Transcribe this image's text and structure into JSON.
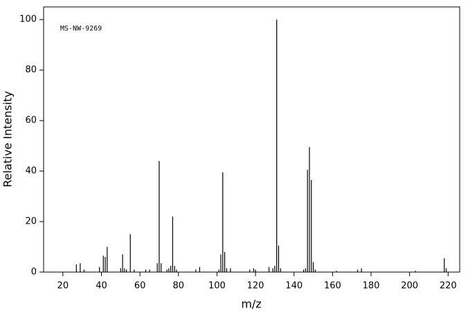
{
  "chart_data": {
    "type": "bar",
    "annotation": "MS-NW-9269",
    "x_label": "m/z",
    "y_label": "Relative Intensity",
    "x": [
      27,
      29,
      31,
      39,
      41,
      42,
      43,
      50,
      51,
      52,
      53,
      55,
      57,
      63,
      65,
      69,
      70,
      71,
      74,
      75,
      76,
      77,
      78,
      79,
      89,
      91,
      101,
      102,
      103,
      104,
      105,
      107,
      117,
      119,
      120,
      127,
      129,
      130,
      131,
      132,
      133,
      145,
      146,
      147,
      148,
      149,
      150,
      151,
      162,
      173,
      175,
      203,
      218,
      219
    ],
    "values": [
      3,
      3.5,
      1,
      2,
      6.5,
      6,
      10,
      1.5,
      7,
      1.5,
      1,
      15,
      1,
      1,
      1,
      3.5,
      44,
      3.5,
      1,
      1.5,
      2.5,
      22,
      2.5,
      1,
      1,
      2,
      1,
      7,
      39.5,
      8,
      1.5,
      1.5,
      1,
      1.5,
      1,
      2,
      1.5,
      2.5,
      100,
      10.5,
      1.5,
      1,
      1.5,
      40.5,
      49.5,
      36.5,
      4,
      1,
      0.5,
      1,
      1.5,
      0.5,
      5.5,
      1.5
    ],
    "color": "#000000",
    "xlim": [
      10,
      226
    ],
    "ylim": [
      0,
      105
    ],
    "xticks": [
      20,
      40,
      60,
      80,
      100,
      120,
      140,
      160,
      180,
      200,
      220
    ],
    "yticks": [
      0,
      20,
      40,
      60,
      80,
      100
    ]
  }
}
